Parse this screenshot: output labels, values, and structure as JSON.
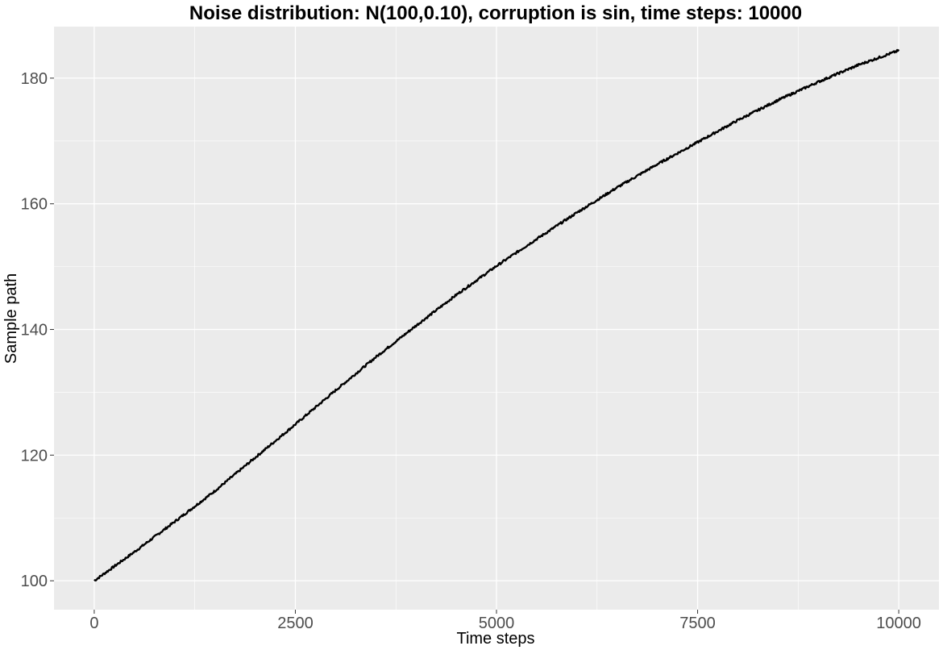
{
  "chart_data": {
    "type": "line",
    "title": "Noise distribution: N(100,0.10), corruption is sin, time steps: 10000",
    "xlabel": "Time steps",
    "ylabel": "Sample path",
    "xlim": [
      -500,
      10500
    ],
    "ylim": [
      95.4,
      188.2
    ],
    "x_ticks": [
      0,
      2500,
      5000,
      7500,
      10000
    ],
    "y_ticks": [
      100,
      120,
      140,
      160,
      180
    ],
    "grid": true,
    "legend": "none",
    "colors": {
      "panel": "#ebebeb",
      "grid": "#ffffff",
      "line": "#000000"
    },
    "series": [
      {
        "x": [
          0,
          500,
          1000,
          1500,
          2000,
          2500,
          3000,
          3500,
          4000,
          4500,
          5000,
          5500,
          6000,
          6500,
          7000,
          7500,
          8000,
          8500,
          9000,
          9500,
          10000
        ],
        "values": [
          100,
          104.6,
          109.4,
          114.3,
          119.6,
          124.9,
          130.3,
          135.6,
          140.6,
          145.5,
          150.1,
          154.4,
          158.6,
          162.6,
          166.3,
          169.8,
          173.3,
          176.5,
          179.4,
          182.1,
          184.4
        ]
      }
    ]
  }
}
